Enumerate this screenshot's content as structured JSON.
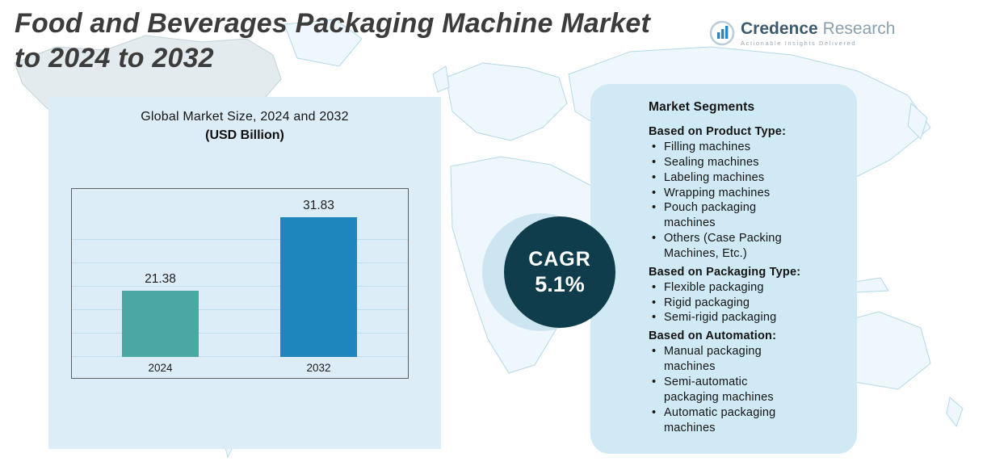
{
  "header": {
    "title_line1": "Food and Beverages Packaging Machine Market",
    "title_line2": "to 2024 to 2032"
  },
  "logo": {
    "brand_primary": "Credence",
    "brand_secondary": "Research",
    "tagline": "Actionable Insights Delivered"
  },
  "chart_data": {
    "type": "bar",
    "title": "Global Market Size, 2024 and 2032",
    "subtitle": "(USD Billion)",
    "categories": [
      "2024",
      "2032"
    ],
    "values": [
      21.38,
      31.83
    ],
    "xlabel": "",
    "ylabel": "USD Billion",
    "ylim": [
      12,
      34
    ],
    "grid": true,
    "legend": false,
    "bar_colors": [
      "#4ba7a1",
      "#1e86bc"
    ]
  },
  "cagr": {
    "label": "CAGR",
    "value": "5.1%",
    "bg_color": "#103d4b"
  },
  "segments": {
    "title": "Market Segments",
    "groups": [
      {
        "heading": "Based on Product Type:",
        "items": [
          "Filling machines",
          "Sealing machines",
          "Labeling machines",
          "Wrapping machines",
          "Pouch packaging machines",
          "Others (Case Packing Machines, Etc.)"
        ]
      },
      {
        "heading": "Based on Packaging Type:",
        "items": [
          "Flexible packaging",
          "Rigid packaging",
          "Semi-rigid packaging"
        ]
      },
      {
        "heading": "Based on Automation:",
        "items": [
          "Manual packaging machines",
          "Semi-automatic packaging machines",
          "Automatic packaging machines"
        ]
      }
    ]
  },
  "colors": {
    "left_panel_bg": "#dcedf7",
    "right_panel_bg": "#cfe9f5",
    "map_line": "#b6d8e7"
  }
}
